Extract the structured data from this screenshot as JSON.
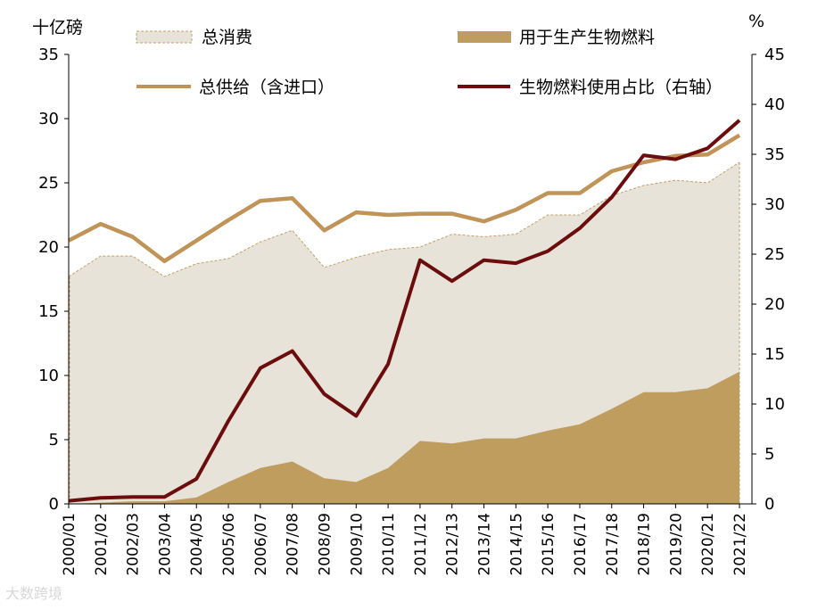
{
  "chart_data": {
    "type": "area",
    "title": "",
    "left_unit": "十亿磅",
    "right_unit": "%",
    "categories": [
      "2000/01",
      "2001/02",
      "2002/03",
      "2003/04",
      "2004/05",
      "2005/06",
      "2006/07",
      "2007/08",
      "2008/09",
      "2009/10",
      "2010/11",
      "2011/12",
      "2012/13",
      "2013/14",
      "2014/15",
      "2015/16",
      "2016/17",
      "2017/18",
      "2018/19",
      "2019/20",
      "2020/21",
      "2021/22"
    ],
    "left_axis": {
      "min": 0,
      "max": 35,
      "ticks": [
        0,
        5,
        10,
        15,
        20,
        25,
        30,
        35
      ]
    },
    "right_axis": {
      "min": 0,
      "max": 45,
      "ticks": [
        0,
        5,
        10,
        15,
        20,
        25,
        30,
        35,
        40,
        45
      ]
    },
    "series": [
      {
        "name": "总消费",
        "kind": "area",
        "axis": "left",
        "values": [
          17.7,
          19.3,
          19.3,
          17.7,
          18.7,
          19.1,
          20.4,
          21.3,
          18.4,
          19.2,
          19.8,
          20.0,
          21.0,
          20.8,
          21.0,
          22.5,
          22.5,
          24.0,
          24.8,
          25.2,
          25.0,
          26.6
        ]
      },
      {
        "name": "用于生产生物燃料",
        "kind": "area",
        "axis": "left",
        "values": [
          0.0,
          0.1,
          0.2,
          0.2,
          0.5,
          1.7,
          2.8,
          3.3,
          2.0,
          1.7,
          2.8,
          4.9,
          4.7,
          5.1,
          5.1,
          5.7,
          6.2,
          7.4,
          8.7,
          8.7,
          9.0,
          10.3
        ]
      },
      {
        "name": "总供给（含进口）",
        "kind": "line",
        "axis": "left",
        "values": [
          20.5,
          21.8,
          20.8,
          18.9,
          20.5,
          22.1,
          23.6,
          23.8,
          21.3,
          22.7,
          22.5,
          22.6,
          22.6,
          22.0,
          22.9,
          24.2,
          24.2,
          25.9,
          26.6,
          27.1,
          27.2,
          28.7
        ]
      },
      {
        "name": "生物燃料使用占比（右轴）",
        "kind": "line",
        "axis": "right",
        "values": [
          0.3,
          0.6,
          0.7,
          0.7,
          2.5,
          8.3,
          13.6,
          15.3,
          11.0,
          8.8,
          14.0,
          24.4,
          22.3,
          24.4,
          24.1,
          25.3,
          27.6,
          30.7,
          34.9,
          34.5,
          35.6,
          38.4
        ]
      }
    ],
    "colors": {
      "consumption_fill": "#e7e3d8",
      "consumption_border": "#c4a06a",
      "biofuel_fill": "#bf9d5f",
      "supply_line": "#c09458",
      "share_line": "#6b0d0d"
    },
    "grid": false,
    "watermark": "大数跨境"
  }
}
